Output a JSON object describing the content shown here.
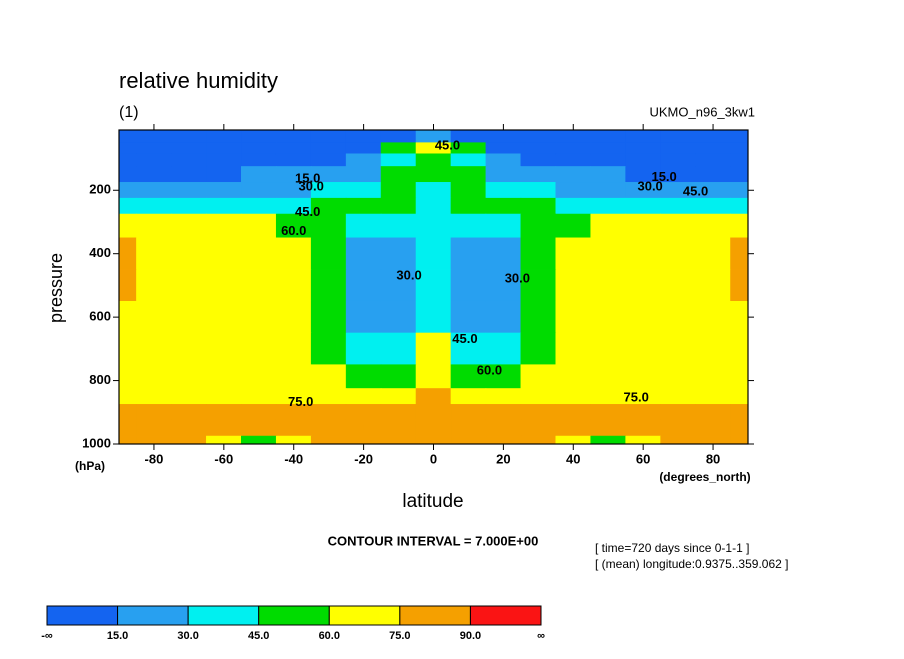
{
  "chart_data": {
    "type": "contour",
    "title": "relative humidity",
    "subtitle": "(1)",
    "source": "UKMO_n96_3kw1",
    "ylabel": "pressure",
    "yunit": "(hPa)",
    "xlabel": "latitude",
    "xunit": "(degrees_north)",
    "contour_interval": "CONTOUR INTERVAL = 7.000E+00",
    "info": [
      "[ time=720 days since 0-1-1 ]",
      "[ (mean) longitude:0.9375..359.062 ]"
    ],
    "xlim": [
      -90,
      90
    ],
    "xticks": [
      -80,
      -60,
      -40,
      -20,
      0,
      20,
      40,
      60,
      80
    ],
    "ylim": [
      1000,
      10
    ],
    "yticks": [
      200,
      400,
      600,
      800,
      1000
    ],
    "x": [
      -90,
      -80,
      -70,
      -60,
      -50,
      -40,
      -30,
      -20,
      -10,
      0,
      10,
      20,
      30,
      40,
      50,
      60,
      70,
      80,
      90
    ],
    "y": [
      30,
      70,
      100,
      150,
      200,
      250,
      300,
      400,
      500,
      600,
      700,
      800,
      850,
      900,
      950,
      1000
    ],
    "z": [
      [
        8,
        8,
        8,
        8,
        8,
        8,
        8,
        8,
        12,
        20,
        12,
        8,
        8,
        8,
        8,
        8,
        8,
        8,
        8
      ],
      [
        10,
        10,
        10,
        10,
        10,
        10,
        10,
        12,
        50,
        70,
        50,
        12,
        10,
        10,
        10,
        10,
        10,
        10,
        10
      ],
      [
        10,
        10,
        10,
        10,
        10,
        11,
        12,
        20,
        40,
        55,
        40,
        20,
        12,
        11,
        10,
        10,
        10,
        10,
        10
      ],
      [
        14,
        14,
        14,
        14,
        16,
        17,
        18,
        25,
        48,
        45,
        48,
        25,
        18,
        17,
        16,
        14,
        14,
        14,
        14
      ],
      [
        25,
        25,
        25,
        26,
        27,
        28,
        32,
        40,
        48,
        40,
        48,
        40,
        32,
        28,
        27,
        26,
        25,
        25,
        25
      ],
      [
        40,
        40,
        40,
        40,
        40,
        42,
        46,
        50,
        50,
        40,
        50,
        50,
        46,
        42,
        40,
        40,
        40,
        40,
        40
      ],
      [
        63,
        63,
        63,
        63,
        62,
        58,
        48,
        42,
        40,
        38,
        40,
        42,
        48,
        58,
        62,
        63,
        63,
        63,
        63
      ],
      [
        76,
        70,
        68,
        68,
        66,
        63,
        48,
        28,
        28,
        36,
        28,
        28,
        48,
        63,
        66,
        68,
        68,
        70,
        76
      ],
      [
        78,
        73,
        70,
        70,
        68,
        64,
        47,
        26,
        25,
        35,
        25,
        26,
        47,
        64,
        68,
        70,
        70,
        73,
        78
      ],
      [
        72,
        72,
        70,
        70,
        68,
        65,
        48,
        28,
        26,
        44,
        26,
        28,
        48,
        65,
        68,
        70,
        70,
        72,
        72
      ],
      [
        70,
        70,
        70,
        70,
        68,
        66,
        50,
        36,
        38,
        62,
        38,
        36,
        50,
        66,
        68,
        70,
        70,
        70,
        70
      ],
      [
        71,
        71,
        71,
        70,
        70,
        68,
        62,
        48,
        58,
        72,
        58,
        48,
        62,
        68,
        70,
        70,
        71,
        71,
        71
      ],
      [
        73,
        73,
        73,
        72,
        72,
        72,
        70,
        66,
        72,
        80,
        72,
        66,
        70,
        72,
        72,
        72,
        73,
        73,
        73
      ],
      [
        76,
        77,
        77,
        78,
        78,
        77,
        77,
        78,
        80,
        82,
        80,
        78,
        77,
        77,
        78,
        78,
        77,
        77,
        76
      ],
      [
        79,
        79,
        80,
        80,
        76,
        78,
        80,
        82,
        84,
        84,
        84,
        82,
        80,
        78,
        76,
        80,
        80,
        79,
        79
      ],
      [
        80,
        80,
        80,
        72,
        55,
        70,
        78,
        80,
        82,
        83,
        82,
        80,
        78,
        70,
        55,
        72,
        80,
        80,
        80
      ]
    ],
    "levels": [
      {
        "value": 15,
        "label": "15.0"
      },
      {
        "value": 30,
        "label": "30.0"
      },
      {
        "value": 45,
        "label": "45.0"
      },
      {
        "value": 60,
        "label": "60.0"
      },
      {
        "value": 75,
        "label": "75.0"
      },
      {
        "value": 90,
        "label": "90.0"
      }
    ],
    "low_label": "-∞",
    "high_label": "∞",
    "colors": [
      "#1464f0",
      "#28a0f0",
      "#00f0f0",
      "#00dc00",
      "#ffff00",
      "#f5a000",
      "#fa1414"
    ],
    "contour_labels": [
      {
        "lat": 4,
        "pressure": 60,
        "label": "45.0"
      },
      {
        "lat": -36,
        "pressure": 165,
        "label": "15.0"
      },
      {
        "lat": -35,
        "pressure": 190,
        "label": "30.0"
      },
      {
        "lat": -36,
        "pressure": 270,
        "label": "45.0"
      },
      {
        "lat": -40,
        "pressure": 330,
        "label": "60.0"
      },
      {
        "lat": -7,
        "pressure": 470,
        "label": "30.0"
      },
      {
        "lat": 24,
        "pressure": 480,
        "label": "30.0"
      },
      {
        "lat": 9,
        "pressure": 670,
        "label": "45.0"
      },
      {
        "lat": 16,
        "pressure": 770,
        "label": "60.0"
      },
      {
        "lat": -38,
        "pressure": 870,
        "label": "75.0"
      },
      {
        "lat": 58,
        "pressure": 855,
        "label": "75.0"
      },
      {
        "lat": 66,
        "pressure": 160,
        "label": "15.0"
      },
      {
        "lat": 62,
        "pressure": 190,
        "label": "30.0"
      },
      {
        "lat": 75,
        "pressure": 205,
        "label": "45.0"
      }
    ]
  }
}
